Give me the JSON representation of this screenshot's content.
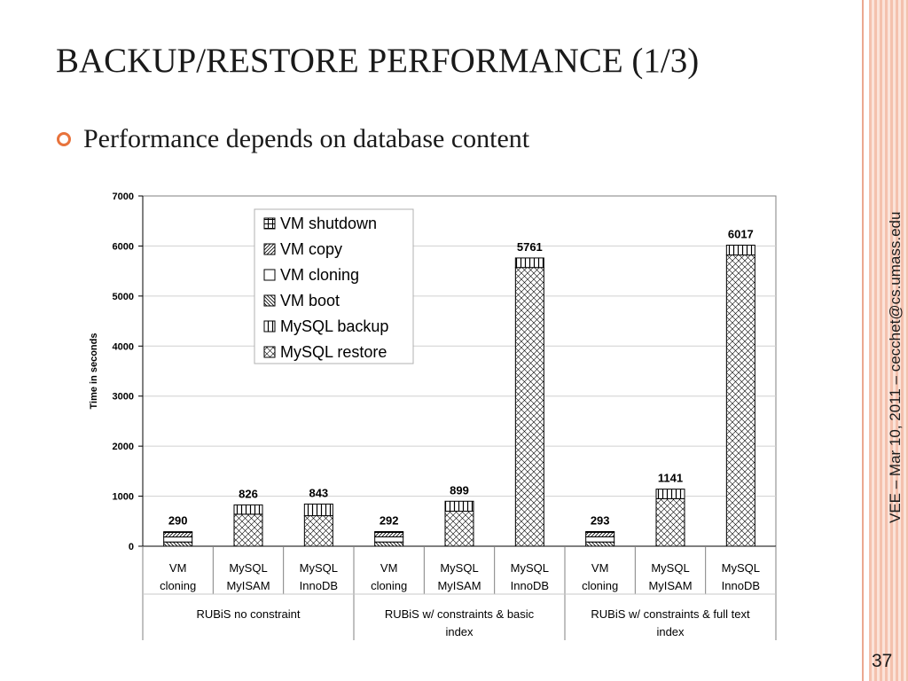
{
  "slide": {
    "title": "BACKUP/RESTORE PERFORMANCE (1/3)",
    "bullet": "Performance depends on database content",
    "side_note": "VEE – Mar 10, 2011 – cecchet@cs.umass.edu",
    "page_number": "37",
    "accent_color": "#e8733c"
  },
  "chart_data": {
    "type": "bar",
    "stacked": true,
    "ylabel": "Time in seconds",
    "ylim": [
      0,
      7000
    ],
    "y_ticks": [
      0,
      1000,
      2000,
      3000,
      4000,
      5000,
      6000,
      7000
    ],
    "grid": true,
    "legend_position": "top-left-inside",
    "categories": [
      "VM cloning",
      "MySQL MyISAM",
      "MySQL InnoDB",
      "VM cloning",
      "MySQL MyISAM",
      "MySQL InnoDB",
      "VM cloning",
      "MySQL MyISAM",
      "MySQL InnoDB"
    ],
    "category_lines": [
      [
        "VM",
        "cloning"
      ],
      [
        "MySQL",
        "MyISAM"
      ],
      [
        "MySQL",
        "InnoDB"
      ],
      [
        "VM",
        "cloning"
      ],
      [
        "MySQL",
        "MyISAM"
      ],
      [
        "MySQL",
        "InnoDB"
      ],
      [
        "VM",
        "cloning"
      ],
      [
        "MySQL",
        "MyISAM"
      ],
      [
        "MySQL",
        "InnoDB"
      ]
    ],
    "groups": [
      {
        "lines": [
          "RUBiS no constraint"
        ],
        "span": [
          0,
          2
        ]
      },
      {
        "lines": [
          "RUBiS w/ constraints & basic",
          "index"
        ],
        "span": [
          3,
          5
        ]
      },
      {
        "lines": [
          "RUBiS w/ constraints & full text",
          "index"
        ],
        "span": [
          6,
          8
        ]
      }
    ],
    "totals": [
      290,
      826,
      843,
      292,
      899,
      5761,
      293,
      1141,
      6017
    ],
    "total_labels": [
      "290",
      "826",
      "843",
      "292",
      "899",
      "5761",
      "293",
      "1141",
      "6017"
    ],
    "series": [
      {
        "name": "VM shutdown",
        "values": [
          15,
          0,
          0,
          15,
          0,
          0,
          15,
          0,
          0
        ]
      },
      {
        "name": "VM copy",
        "values": [
          90,
          0,
          0,
          90,
          0,
          0,
          90,
          0,
          0
        ]
      },
      {
        "name": "VM cloning",
        "values": [
          100,
          0,
          0,
          102,
          0,
          0,
          103,
          0,
          0
        ]
      },
      {
        "name": "VM boot",
        "values": [
          85,
          0,
          0,
          85,
          0,
          0,
          85,
          0,
          0
        ]
      },
      {
        "name": "MySQL backup",
        "values": [
          0,
          186,
          233,
          0,
          199,
          191,
          0,
          191,
          197
        ]
      },
      {
        "name": "MySQL restore",
        "values": [
          0,
          640,
          610,
          0,
          700,
          5570,
          0,
          950,
          5820
        ]
      }
    ]
  }
}
